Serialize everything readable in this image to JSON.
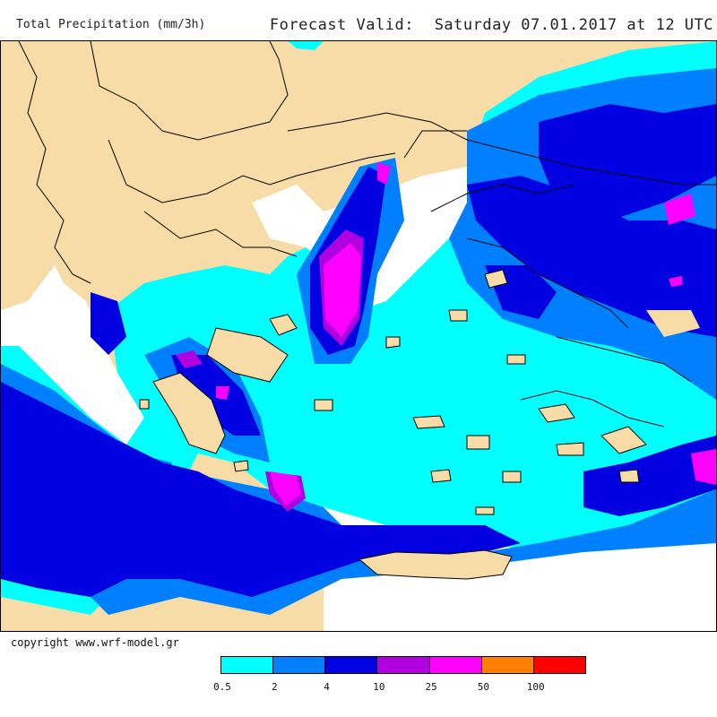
{
  "header": {
    "product_title": "Total Precipitation (mm/3h)",
    "valid_label": "Forecast Valid:",
    "valid_time": "Saturday 07.01.2017 at 12 UTC"
  },
  "footer": {
    "copyright": "copyright www.wrf-model.gr"
  },
  "legend": {
    "colors": [
      "#00ffff",
      "#0080ff",
      "#0000e0",
      "#b000e0",
      "#ff00ff",
      "#ff8000",
      "#ff0000"
    ],
    "labels": [
      "0.5",
      "2",
      "4",
      "10",
      "25",
      "50",
      "100"
    ]
  },
  "map": {
    "land_color": "#f7dca7",
    "no_precip_color": "#ffffff"
  }
}
